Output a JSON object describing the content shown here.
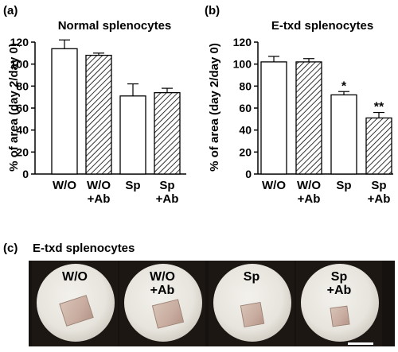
{
  "panels": {
    "a": {
      "tag": "(a)"
    },
    "b": {
      "tag": "(b)"
    },
    "c": {
      "tag": "(c)",
      "title": "E-txd splenocytes"
    }
  },
  "chart_data": [
    {
      "type": "bar",
      "panel": "a",
      "title": "Normal splenocytes",
      "ylabel": "% of area (day 2/day 0)",
      "ylim": [
        0,
        120
      ],
      "yticks": [
        0,
        20,
        40,
        60,
        80,
        100,
        120
      ],
      "categories": [
        "W/O",
        "W/O\n+Ab",
        "Sp",
        "Sp\n+Ab"
      ],
      "values": [
        114,
        108,
        71,
        74
      ],
      "errors": [
        8,
        2,
        11,
        4
      ],
      "fills": [
        "open",
        "hatched",
        "open",
        "hatched"
      ],
      "significance": [
        "",
        "",
        "",
        ""
      ]
    },
    {
      "type": "bar",
      "panel": "b",
      "title": "E-txd splenocytes",
      "ylabel": "% of area (day 2/day 0)",
      "ylim": [
        0,
        120
      ],
      "yticks": [
        0,
        20,
        40,
        60,
        80,
        100,
        120
      ],
      "categories": [
        "W/O",
        "W/O\n+Ab",
        "Sp",
        "Sp\n+Ab"
      ],
      "values": [
        102,
        102,
        72,
        51
      ],
      "errors": [
        5,
        3,
        3,
        5
      ],
      "fills": [
        "open",
        "hatched",
        "open",
        "hatched"
      ],
      "significance": [
        "",
        "",
        "*",
        "**"
      ]
    }
  ],
  "photos": [
    {
      "label": "W/O"
    },
    {
      "label": "W/O\n+Ab"
    },
    {
      "label": "Sp"
    },
    {
      "label": "Sp\n+Ab"
    }
  ]
}
